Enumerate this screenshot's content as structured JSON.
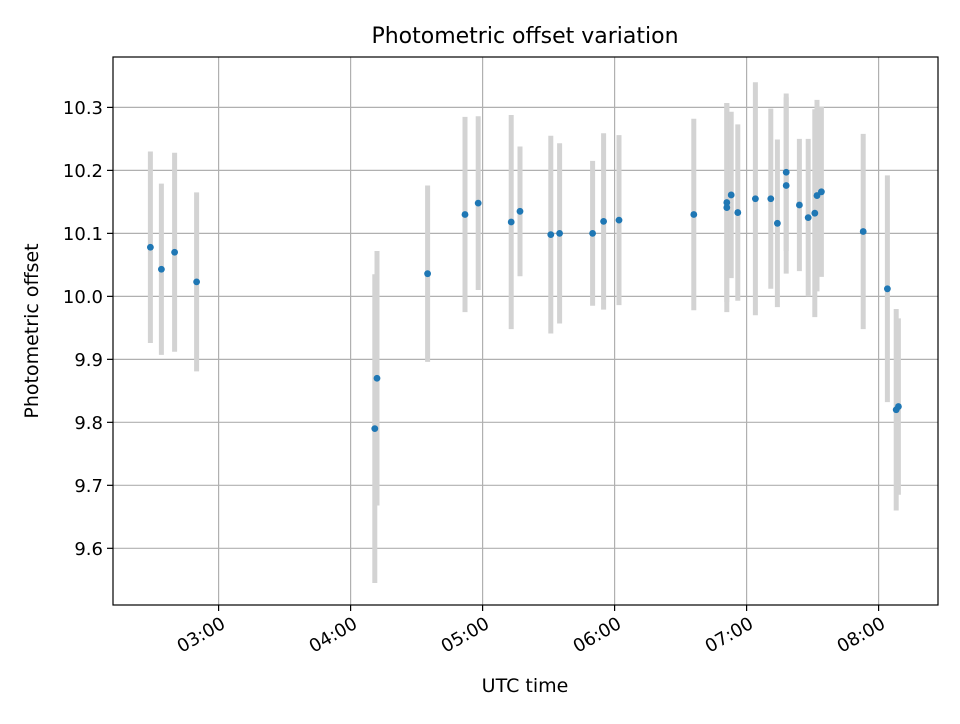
{
  "chart_data": {
    "type": "scatter",
    "title": "Photometric offset variation",
    "xlabel": "UTC time",
    "ylabel": "Photometric offset",
    "x_axis_kind": "time",
    "xlim": [
      "02:12",
      "08:27"
    ],
    "ylim": [
      9.51,
      10.38
    ],
    "xticks": [
      "03:00",
      "04:00",
      "05:00",
      "06:00",
      "07:00",
      "08:00"
    ],
    "yticks": [
      "9.6",
      "9.7",
      "9.8",
      "9.9",
      "10.0",
      "10.1",
      "10.2",
      "10.3"
    ],
    "grid": true,
    "legend": "none",
    "colors": {
      "points": "#1f77b4",
      "errorbars": "#d3d3d3",
      "grid": "#b0b0b0"
    },
    "series": [
      {
        "points": [
          {
            "x": "02:29",
            "y": 10.078,
            "err": 0.152
          },
          {
            "x": "02:34",
            "y": 10.043,
            "err": 0.136
          },
          {
            "x": "02:40",
            "y": 10.07,
            "err": 0.158
          },
          {
            "x": "02:50",
            "y": 10.023,
            "err": 0.142
          },
          {
            "x": "04:11",
            "y": 9.79,
            "err": 0.245
          },
          {
            "x": "04:12",
            "y": 9.87,
            "err": 0.202
          },
          {
            "x": "04:35",
            "y": 10.036,
            "err": 0.14
          },
          {
            "x": "04:52",
            "y": 10.13,
            "err": 0.155
          },
          {
            "x": "04:58",
            "y": 10.148,
            "err": 0.138
          },
          {
            "x": "05:13",
            "y": 10.118,
            "err": 0.17
          },
          {
            "x": "05:17",
            "y": 10.135,
            "err": 0.103
          },
          {
            "x": "05:31",
            "y": 10.098,
            "err": 0.157
          },
          {
            "x": "05:35",
            "y": 10.1,
            "err": 0.143
          },
          {
            "x": "05:50",
            "y": 10.1,
            "err": 0.115
          },
          {
            "x": "05:55",
            "y": 10.119,
            "err": 0.14
          },
          {
            "x": "06:02",
            "y": 10.121,
            "err": 0.135
          },
          {
            "x": "06:36",
            "y": 10.13,
            "err": 0.152
          },
          {
            "x": "06:51",
            "y": 10.149,
            "err": 0.158
          },
          {
            "x": "06:51",
            "y": 10.141,
            "err": 0.166
          },
          {
            "x": "06:53",
            "y": 10.161,
            "err": 0.132
          },
          {
            "x": "06:56",
            "y": 10.133,
            "err": 0.14
          },
          {
            "x": "07:04",
            "y": 10.155,
            "err": 0.185
          },
          {
            "x": "07:11",
            "y": 10.155,
            "err": 0.143
          },
          {
            "x": "07:14",
            "y": 10.116,
            "err": 0.133
          },
          {
            "x": "07:18",
            "y": 10.176,
            "err": 0.14
          },
          {
            "x": "07:18",
            "y": 10.197,
            "err": 0.125
          },
          {
            "x": "07:24",
            "y": 10.145,
            "err": 0.105
          },
          {
            "x": "07:28",
            "y": 10.125,
            "err": 0.125
          },
          {
            "x": "07:31",
            "y": 10.132,
            "err": 0.165
          },
          {
            "x": "07:32",
            "y": 10.16,
            "err": 0.152
          },
          {
            "x": "07:34",
            "y": 10.166,
            "err": 0.135
          },
          {
            "x": "07:53",
            "y": 10.103,
            "err": 0.155
          },
          {
            "x": "08:04",
            "y": 10.012,
            "err": 0.18
          },
          {
            "x": "08:08",
            "y": 9.82,
            "err": 0.16
          },
          {
            "x": "08:09",
            "y": 9.825,
            "err": 0.14
          }
        ]
      }
    ]
  }
}
